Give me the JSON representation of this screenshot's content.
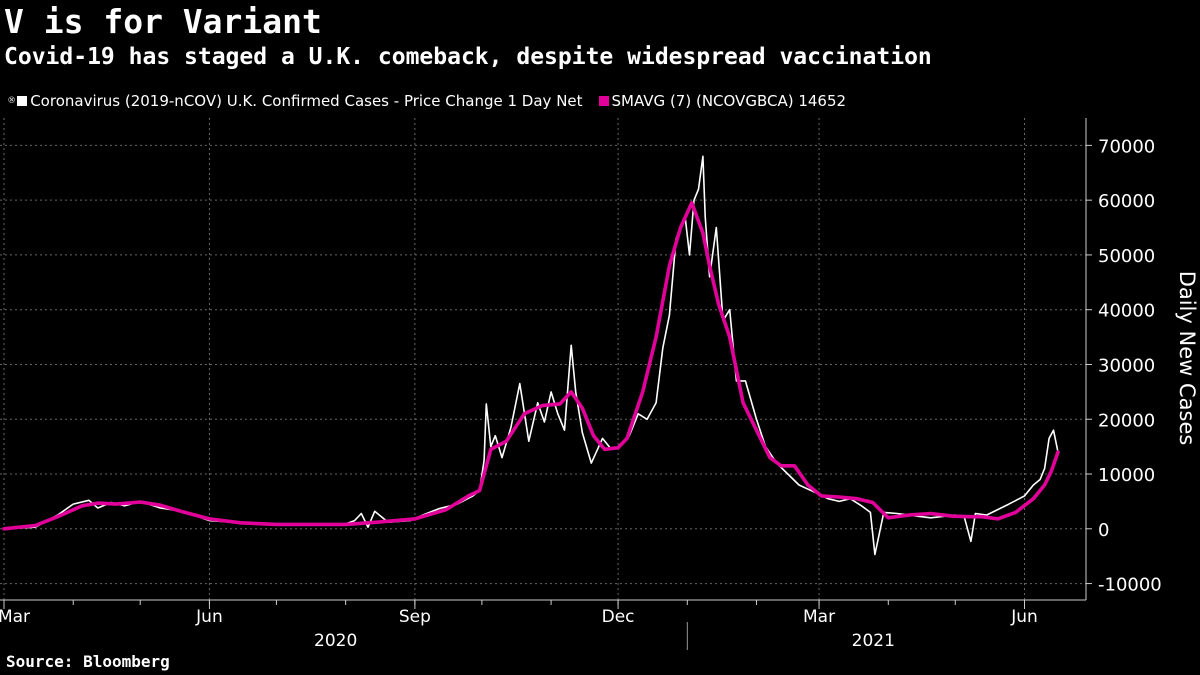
{
  "title": "V is for Variant",
  "subtitle": "Covid-19 has staged a U.K. comeback, despite widespread vaccination",
  "legend": {
    "series1_label": "Coronavirus (2019-nCOV) U.K. Confirmed Cases - Price Change 1 Day Net",
    "series2_label": "SMAVG (7) (NCOVGBCA) 14652"
  },
  "source": "Source: Bloomberg",
  "colors": {
    "background": "#000000",
    "daily": "#ffffff",
    "smavg": "#e10099",
    "grid": "#666666"
  },
  "chart_data": {
    "type": "line",
    "ylabel": "Daily New Cases",
    "ylim": [
      -13000,
      75000
    ],
    "yticks": [
      70000,
      60000,
      50000,
      40000,
      30000,
      20000,
      10000,
      0,
      -10000
    ],
    "x_start": "2020-03-01",
    "x_end": "2021-06-16",
    "month_ticks": [
      "Mar",
      "Jun",
      "Sep",
      "Dec",
      "Mar",
      "Jun"
    ],
    "year_labels": [
      "2020",
      "2021"
    ],
    "grid": true,
    "legend_position": "top-left",
    "series": [
      {
        "name": "Coronavirus (2019-nCOV) U.K. Confirmed Cases - Price Change 1 Day Net",
        "x": [
          "2020-03-01",
          "2020-03-15",
          "2020-03-25",
          "2020-04-01",
          "2020-04-08",
          "2020-04-12",
          "2020-04-18",
          "2020-04-24",
          "2020-05-01",
          "2020-05-10",
          "2020-05-20",
          "2020-06-01",
          "2020-06-15",
          "2020-07-01",
          "2020-07-15",
          "2020-07-25",
          "2020-08-01",
          "2020-08-05",
          "2020-08-08",
          "2020-08-11",
          "2020-08-14",
          "2020-08-20",
          "2020-08-30",
          "2020-09-05",
          "2020-09-12",
          "2020-09-20",
          "2020-09-27",
          "2020-09-30",
          "2020-10-02",
          "2020-10-03",
          "2020-10-05",
          "2020-10-07",
          "2020-10-10",
          "2020-10-14",
          "2020-10-18",
          "2020-10-22",
          "2020-10-26",
          "2020-10-29",
          "2020-11-01",
          "2020-11-04",
          "2020-11-07",
          "2020-11-10",
          "2020-11-12",
          "2020-11-15",
          "2020-11-19",
          "2020-11-24",
          "2020-11-28",
          "2020-12-02",
          "2020-12-06",
          "2020-12-10",
          "2020-12-14",
          "2020-12-18",
          "2020-12-21",
          "2020-12-24",
          "2020-12-27",
          "2020-12-29",
          "2020-12-31",
          "2021-01-02",
          "2021-01-04",
          "2021-01-06",
          "2021-01-08",
          "2021-01-09",
          "2021-01-11",
          "2021-01-14",
          "2021-01-17",
          "2021-01-20",
          "2021-01-23",
          "2021-01-27",
          "2021-02-01",
          "2021-02-05",
          "2021-02-10",
          "2021-02-15",
          "2021-02-20",
          "2021-02-28",
          "2021-03-05",
          "2021-03-10",
          "2021-03-15",
          "2021-03-20",
          "2021-03-24",
          "2021-03-26",
          "2021-03-30",
          "2021-04-05",
          "2021-04-10",
          "2021-04-20",
          "2021-05-01",
          "2021-05-05",
          "2021-05-08",
          "2021-05-10",
          "2021-05-15",
          "2021-05-20",
          "2021-05-25",
          "2021-06-01",
          "2021-06-05",
          "2021-06-08",
          "2021-06-10",
          "2021-06-12",
          "2021-06-14",
          "2021-06-16"
        ],
        "y": [
          0,
          300,
          2500,
          4500,
          5200,
          3800,
          4800,
          4200,
          5000,
          3800,
          3200,
          1500,
          1100,
          700,
          750,
          800,
          900,
          1500,
          2800,
          300,
          3200,
          1200,
          1500,
          2600,
          3700,
          4500,
          6000,
          7000,
          12500,
          22800,
          15000,
          17000,
          13000,
          18500,
          26500,
          16000,
          23000,
          19500,
          25000,
          21000,
          18000,
          33500,
          25000,
          17500,
          12000,
          16500,
          14500,
          15000,
          17000,
          21000,
          20000,
          23000,
          33000,
          39000,
          53000,
          55000,
          57000,
          50000,
          60000,
          62000,
          68000,
          57000,
          46000,
          55000,
          38000,
          40000,
          27000,
          27000,
          20000,
          15000,
          12000,
          10000,
          8000,
          6500,
          5500,
          5000,
          5500,
          4200,
          3000,
          -4700,
          3000,
          2800,
          2500,
          2000,
          2500,
          2200,
          -2300,
          2800,
          2500,
          3500,
          4500,
          6000,
          8000,
          9000,
          11000,
          16500,
          18000,
          14000
        ]
      },
      {
        "name": "SMAVG (7) (NCOVGBCA) 14652",
        "x": [
          "2020-03-01",
          "2020-03-15",
          "2020-03-25",
          "2020-04-05",
          "2020-04-12",
          "2020-04-20",
          "2020-05-01",
          "2020-05-10",
          "2020-05-20",
          "2020-06-01",
          "2020-06-15",
          "2020-07-01",
          "2020-07-15",
          "2020-08-01",
          "2020-08-15",
          "2020-09-01",
          "2020-09-15",
          "2020-09-25",
          "2020-09-30",
          "2020-10-05",
          "2020-10-12",
          "2020-10-20",
          "2020-10-28",
          "2020-11-05",
          "2020-11-10",
          "2020-11-15",
          "2020-11-20",
          "2020-11-25",
          "2020-12-01",
          "2020-12-05",
          "2020-12-12",
          "2020-12-18",
          "2020-12-24",
          "2020-12-29",
          "2021-01-03",
          "2021-01-08",
          "2021-01-11",
          "2021-01-15",
          "2021-01-20",
          "2021-01-26",
          "2021-02-01",
          "2021-02-07",
          "2021-02-12",
          "2021-02-18",
          "2021-02-24",
          "2021-03-02",
          "2021-03-10",
          "2021-03-18",
          "2021-03-25",
          "2021-04-01",
          "2021-04-10",
          "2021-04-20",
          "2021-04-30",
          "2021-05-08",
          "2021-05-13",
          "2021-05-20",
          "2021-05-28",
          "2021-06-05",
          "2021-06-10",
          "2021-06-13",
          "2021-06-16"
        ],
        "y": [
          0,
          600,
          2200,
          4200,
          4700,
          4500,
          4900,
          4300,
          3100,
          1800,
          1100,
          800,
          800,
          800,
          1200,
          1800,
          3500,
          6000,
          7000,
          14500,
          16000,
          21000,
          22500,
          22800,
          25000,
          22000,
          17000,
          14500,
          14800,
          16500,
          25000,
          35000,
          48000,
          55000,
          59500,
          54000,
          48000,
          41000,
          35000,
          23000,
          18000,
          13000,
          11500,
          11500,
          8000,
          6000,
          5800,
          5500,
          4800,
          2000,
          2500,
          2800,
          2300,
          2200,
          2200,
          1800,
          3000,
          5500,
          8000,
          10500,
          14000
        ]
      }
    ]
  }
}
